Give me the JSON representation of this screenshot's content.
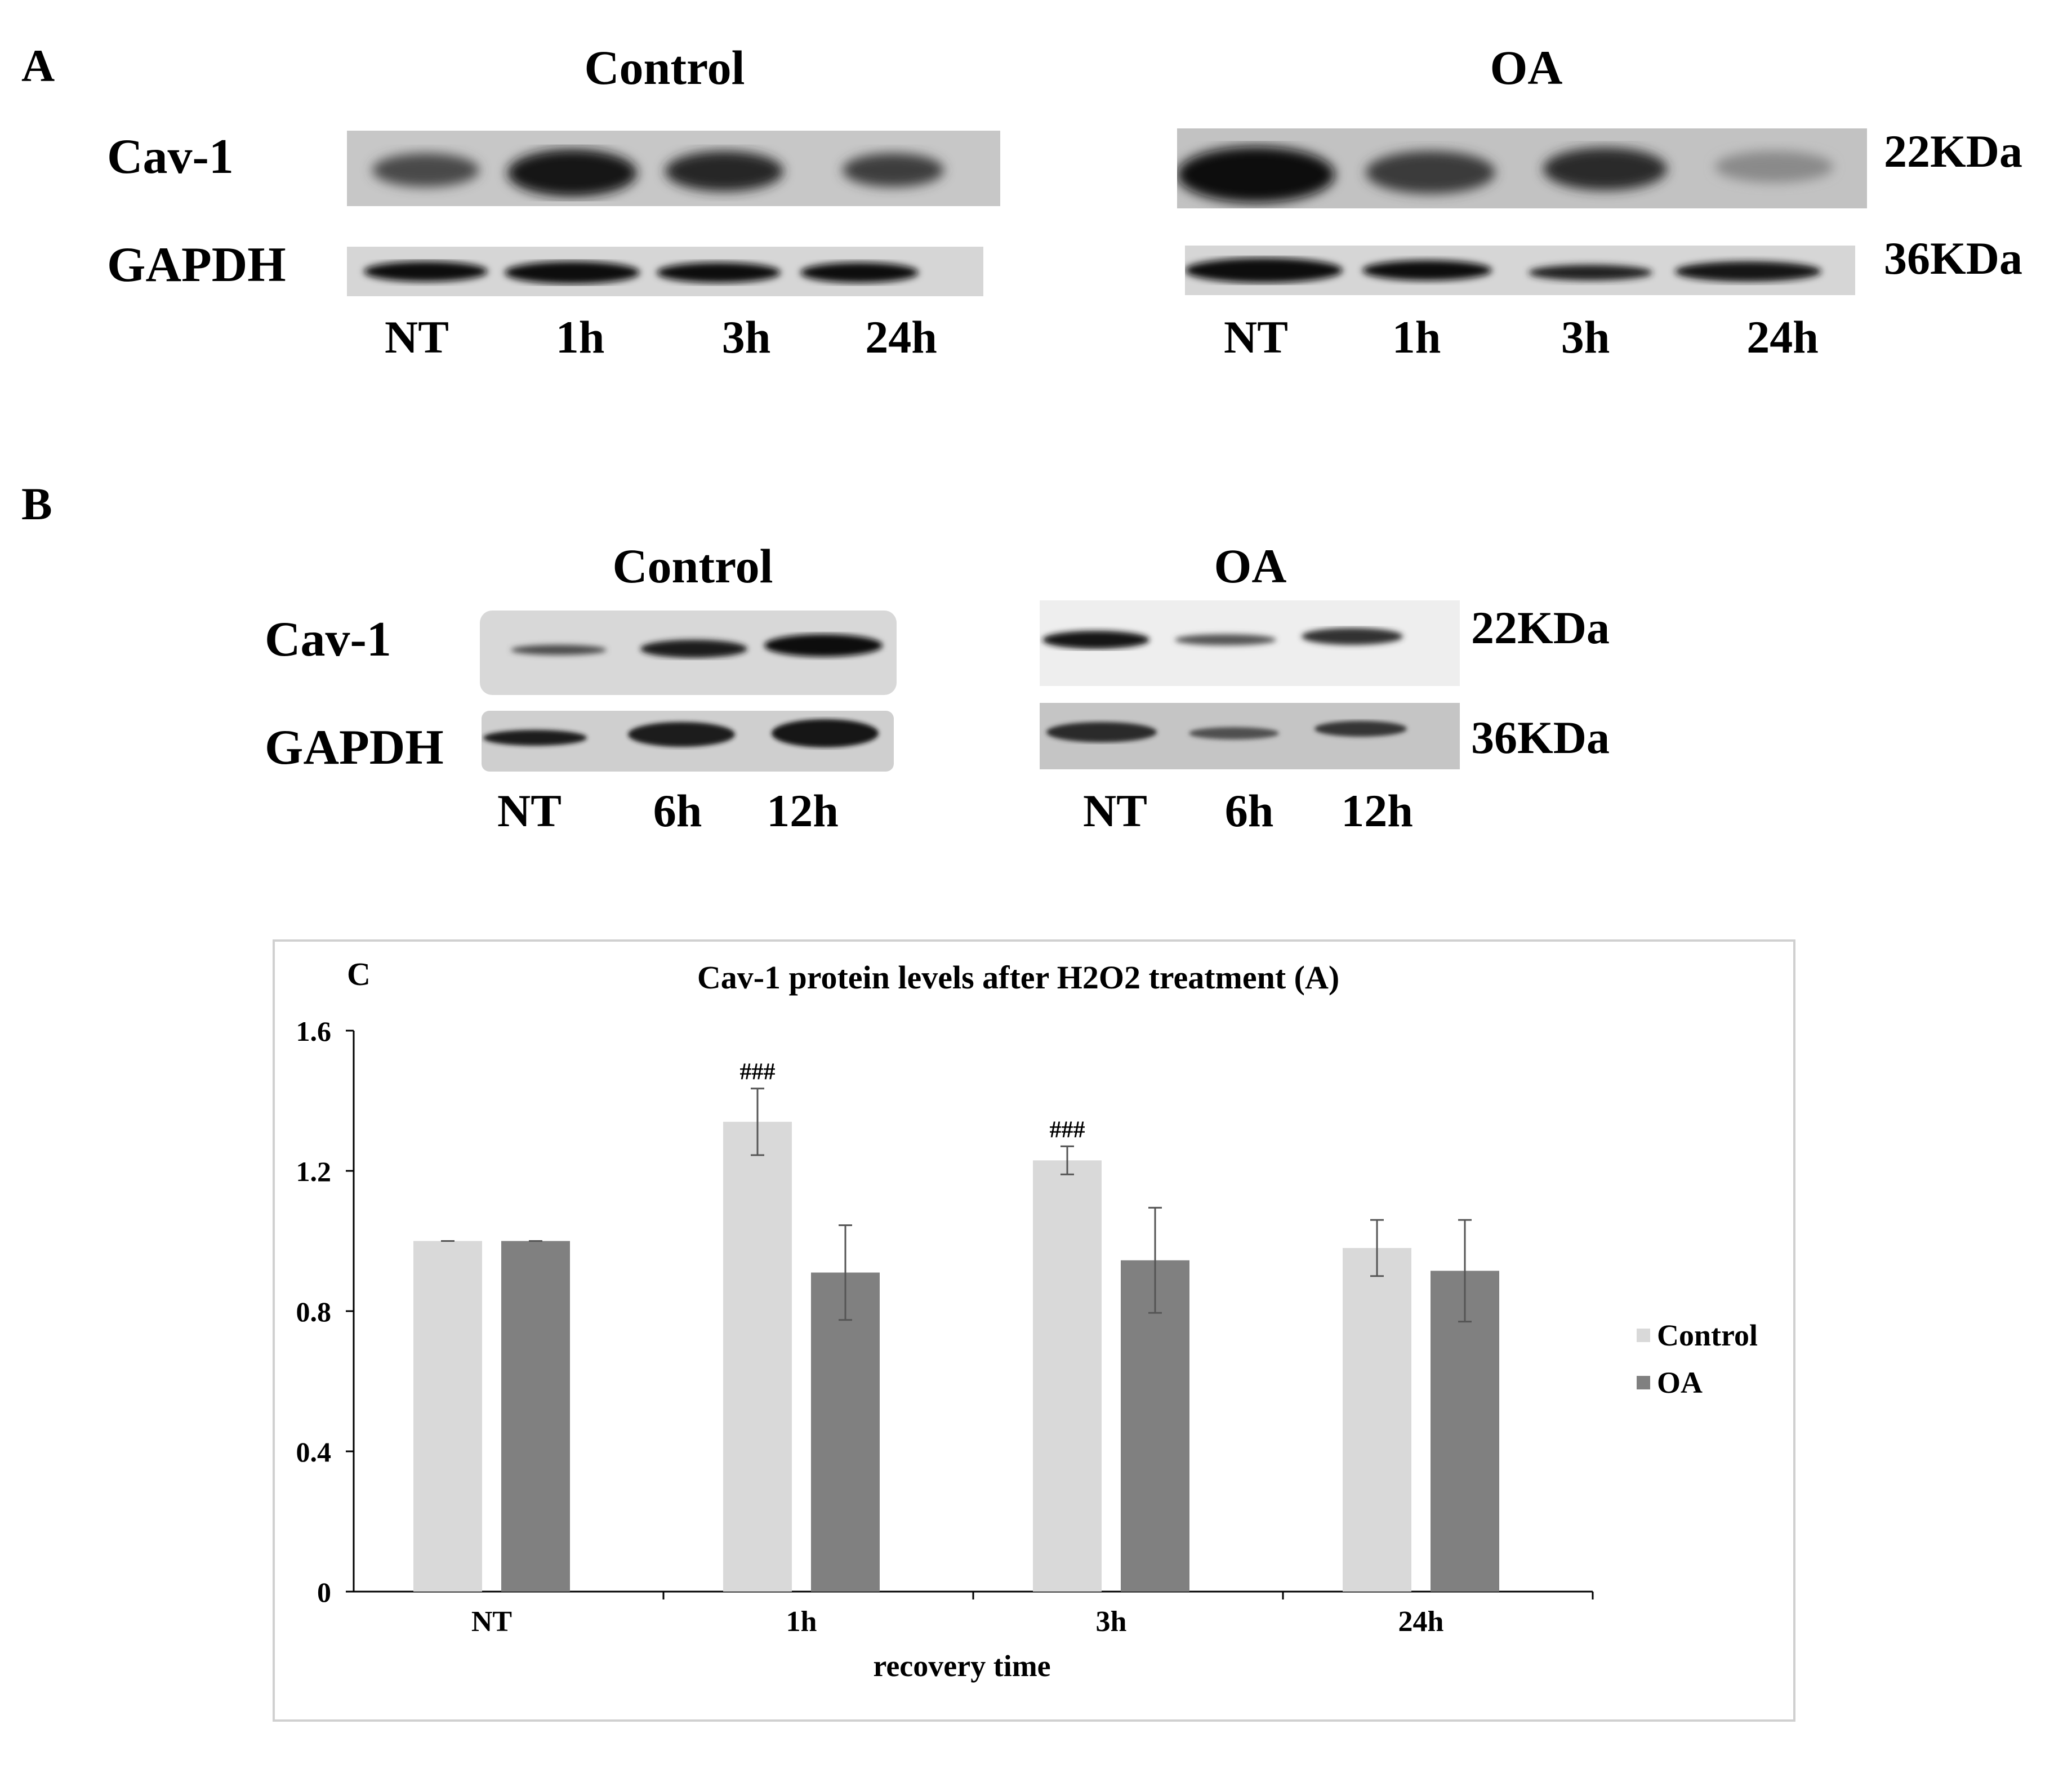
{
  "panel_a": {
    "letter": "A",
    "control_title": "Control",
    "oa_title": "OA",
    "row1_label": "Cav-1",
    "row2_label": "GAPDH",
    "kda1": "22KDa",
    "kda2": "36KDa",
    "control_lanes": [
      "NT",
      "1h",
      "3h",
      "24h"
    ],
    "oa_lanes": [
      "NT",
      "1h",
      "3h",
      "24h"
    ]
  },
  "panel_b": {
    "letter": "B",
    "control_title": "Control",
    "oa_title": "OA",
    "row1_label": "Cav-1",
    "row2_label": "GAPDH",
    "kda1": "22KDa",
    "kda2": "36KDa",
    "control_lanes": [
      "NT",
      "6h",
      "12h"
    ],
    "oa_lanes": [
      "NT",
      "6h",
      "12h"
    ]
  },
  "panel_c": {
    "letter": "C",
    "chart_data": {
      "type": "bar",
      "title": "Cav-1 protein levels after H2O2 treatment (A)",
      "xlabel": "recovery time",
      "ylabel": "",
      "categories": [
        "NT",
        "1h",
        "3h",
        "24h"
      ],
      "ylim": [
        0,
        1.6
      ],
      "yticks": [
        0,
        0.4,
        0.8,
        1.2,
        1.6
      ],
      "ytick_labels": [
        "0",
        "0.4",
        "0.8",
        "1.2",
        "1.6"
      ],
      "legend_position": "right",
      "series": [
        {
          "name": "Control",
          "color": "#d9d9d9",
          "values": [
            1.0,
            1.34,
            1.23,
            0.98
          ],
          "errors": [
            0.0,
            0.095,
            0.04,
            0.08
          ],
          "annotations": [
            "",
            "###",
            "###",
            ""
          ]
        },
        {
          "name": "OA",
          "color": "#808080",
          "values": [
            1.0,
            0.91,
            0.945,
            0.915
          ],
          "errors": [
            0.0,
            0.135,
            0.15,
            0.145
          ],
          "annotations": [
            "",
            "",
            "",
            ""
          ]
        }
      ]
    }
  }
}
